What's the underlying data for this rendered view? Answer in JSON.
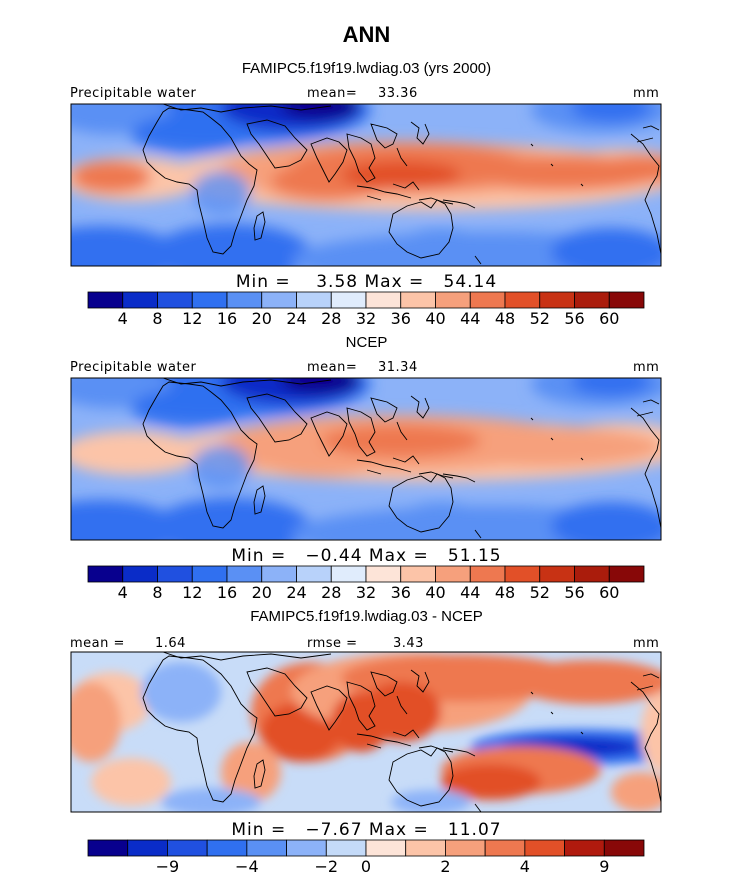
{
  "figure_title": "ANN",
  "chart_data": [
    {
      "type": "heatmap",
      "title": "FAMIPC5.f19f19.lwdiag.03 (yrs 2000)",
      "field_label": "Precipitable water",
      "stat_label": "mean=",
      "stat_value": "33.36",
      "units": "mm",
      "minmax": "Min =    3.58 Max =   54.14",
      "min": 3.58,
      "max": 54.14,
      "colorbar_ticks": [
        "4",
        "8",
        "12",
        "16",
        "20",
        "24",
        "28",
        "32",
        "36",
        "40",
        "44",
        "48",
        "52",
        "56",
        "60"
      ],
      "colorbar_levels": [
        4,
        8,
        12,
        16,
        20,
        24,
        28,
        32,
        36,
        40,
        44,
        48,
        52,
        56,
        60
      ]
    },
    {
      "type": "heatmap",
      "title": "NCEP",
      "field_label": "Precipitable water",
      "stat_label": "mean=",
      "stat_value": "31.34",
      "units": "mm",
      "minmax": "Min =   −0.44 Max =   51.15",
      "min": -0.44,
      "max": 51.15,
      "colorbar_ticks": [
        "4",
        "8",
        "12",
        "16",
        "20",
        "24",
        "28",
        "32",
        "36",
        "40",
        "44",
        "48",
        "52",
        "56",
        "60"
      ],
      "colorbar_levels": [
        4,
        8,
        12,
        16,
        20,
        24,
        28,
        32,
        36,
        40,
        44,
        48,
        52,
        56,
        60
      ]
    },
    {
      "type": "heatmap",
      "title": "FAMIPC5.f19f19.lwdiag.03 - NCEP",
      "field_label": "mean =",
      "field_value": "1.64",
      "stat_label": "rmse =",
      "stat_value": "3.43",
      "units": "mm",
      "minmax": "Min =   −7.67 Max =   11.07",
      "min": -7.67,
      "max": 11.07,
      "colorbar_ticks": [
        "−9",
        "−4",
        "−2",
        "0",
        "2",
        "4",
        "9"
      ],
      "colorbar_levels": [
        -9,
        -4,
        -2,
        0,
        2,
        4,
        9
      ]
    }
  ],
  "colors": {
    "scale16": [
      "#08008e",
      "#0a2cc8",
      "#2050e0",
      "#3070f0",
      "#5a90f4",
      "#8cb2f8",
      "#b8d2fa",
      "#e0ecfc",
      "#fde4d8",
      "#fcc4a8",
      "#f6a07c",
      "#ee7850",
      "#e25028",
      "#c83214",
      "#aa1c0c",
      "#880808"
    ],
    "scale14": [
      "#08008e",
      "#0a2cc8",
      "#2050e0",
      "#3070f0",
      "#5a90f4",
      "#8cb2f8",
      "#c4daf8",
      "#fde4d8",
      "#fcc4a8",
      "#f6a07c",
      "#ee7850",
      "#e25028",
      "#b01a0e",
      "#880808"
    ]
  }
}
